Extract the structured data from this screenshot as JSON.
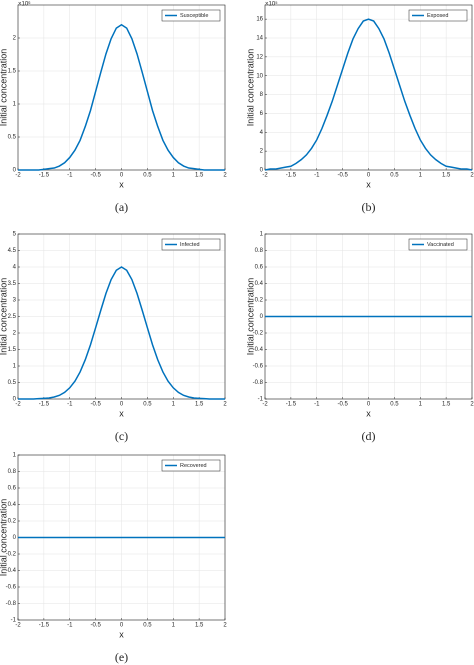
{
  "chart_data": [
    {
      "type": "line",
      "caption": "(a)",
      "xlabel": "x",
      "ylabel": "Initial concentration",
      "y_exponent_label": "×10⁶",
      "x": [
        -2,
        -1.9,
        -1.8,
        -1.7,
        -1.6,
        -1.5,
        -1.4,
        -1.3,
        -1.2,
        -1.1,
        -1,
        -0.9,
        -0.8,
        -0.7,
        -0.6,
        -0.5,
        -0.4,
        -0.3,
        -0.2,
        -0.1,
        0,
        0.1,
        0.2,
        0.3,
        0.4,
        0.5,
        0.6,
        0.7,
        0.8,
        0.9,
        1,
        1.1,
        1.2,
        1.3,
        1.4,
        1.5,
        1.6,
        1.7,
        1.8,
        1.9,
        2
      ],
      "series": [
        {
          "name": "Susceptible",
          "color": "#0072bd",
          "values": [
            0,
            0,
            0,
            0,
            0,
            0.01,
            0.02,
            0.03,
            0.06,
            0.11,
            0.19,
            0.3,
            0.45,
            0.66,
            0.9,
            1.19,
            1.48,
            1.76,
            1.99,
            2.15,
            2.2,
            2.15,
            1.99,
            1.76,
            1.48,
            1.19,
            0.9,
            0.66,
            0.45,
            0.3,
            0.19,
            0.11,
            0.06,
            0.03,
            0.02,
            0.01,
            0,
            0,
            0,
            0,
            0
          ]
        }
      ],
      "xlim": [
        -2,
        2
      ],
      "ylim": [
        0,
        2.5
      ],
      "xticks": [
        -2,
        -1.5,
        -1,
        -0.5,
        0,
        0.5,
        1,
        1.5,
        2
      ],
      "yticks": [
        0,
        0.5,
        1,
        1.5,
        2
      ],
      "grid": true,
      "legend": "upper right"
    },
    {
      "type": "line",
      "caption": "(b)",
      "xlabel": "x",
      "ylabel": "Initial concentration",
      "y_exponent_label": "×10⁵",
      "x": [
        -2,
        -1.9,
        -1.8,
        -1.7,
        -1.6,
        -1.5,
        -1.4,
        -1.3,
        -1.2,
        -1.1,
        -1,
        -0.9,
        -0.8,
        -0.7,
        -0.6,
        -0.5,
        -0.4,
        -0.3,
        -0.2,
        -0.1,
        0,
        0.1,
        0.2,
        0.3,
        0.4,
        0.5,
        0.6,
        0.7,
        0.8,
        0.9,
        1,
        1.1,
        1.2,
        1.3,
        1.4,
        1.5,
        1.6,
        1.7,
        1.8,
        1.9,
        2
      ],
      "series": [
        {
          "name": "Exposed",
          "color": "#0072bd",
          "values": [
            0,
            0.1,
            0.1,
            0.2,
            0.3,
            0.4,
            0.7,
            1.1,
            1.6,
            2.3,
            3.2,
            4.4,
            5.8,
            7.3,
            9,
            10.7,
            12.4,
            13.9,
            15,
            15.8,
            16,
            15.8,
            15,
            13.9,
            12.4,
            10.7,
            9,
            7.3,
            5.8,
            4.4,
            3.2,
            2.3,
            1.6,
            1.1,
            0.7,
            0.4,
            0.3,
            0.2,
            0.1,
            0.1,
            0
          ]
        }
      ],
      "xlim": [
        -2,
        2
      ],
      "ylim": [
        0,
        17.5
      ],
      "xticks": [
        -2,
        -1.5,
        -1,
        -0.5,
        0,
        0.5,
        1,
        1.5,
        2
      ],
      "yticks": [
        0,
        2,
        4,
        6,
        8,
        10,
        12,
        14,
        16
      ],
      "grid": true,
      "legend": "upper right"
    },
    {
      "type": "line",
      "caption": "(c)",
      "xlabel": "x",
      "ylabel": "Initial concentration",
      "x": [
        -2,
        -1.9,
        -1.8,
        -1.7,
        -1.6,
        -1.5,
        -1.4,
        -1.3,
        -1.2,
        -1.1,
        -1,
        -0.9,
        -0.8,
        -0.7,
        -0.6,
        -0.5,
        -0.4,
        -0.3,
        -0.2,
        -0.1,
        0,
        0.1,
        0.2,
        0.3,
        0.4,
        0.5,
        0.6,
        0.7,
        0.8,
        0.9,
        1,
        1.1,
        1.2,
        1.3,
        1.4,
        1.5,
        1.6,
        1.7,
        1.8,
        1.9,
        2
      ],
      "series": [
        {
          "name": "Infected",
          "color": "#0072bd",
          "values": [
            0,
            0,
            0,
            0,
            0.01,
            0.02,
            0.03,
            0.06,
            0.11,
            0.2,
            0.34,
            0.54,
            0.82,
            1.19,
            1.64,
            2.16,
            2.69,
            3.2,
            3.62,
            3.9,
            4,
            3.9,
            3.62,
            3.2,
            2.69,
            2.16,
            1.64,
            1.19,
            0.82,
            0.54,
            0.34,
            0.2,
            0.11,
            0.06,
            0.03,
            0.02,
            0.01,
            0,
            0,
            0,
            0
          ]
        }
      ],
      "xlim": [
        -2,
        2
      ],
      "ylim": [
        0,
        5
      ],
      "xticks": [
        -2,
        -1.5,
        -1,
        -0.5,
        0,
        0.5,
        1,
        1.5,
        2
      ],
      "yticks": [
        0,
        0.5,
        1,
        1.5,
        2,
        2.5,
        3,
        3.5,
        4,
        4.5,
        5
      ],
      "grid": true,
      "legend": "upper right"
    },
    {
      "type": "line",
      "caption": "(d)",
      "xlabel": "x",
      "ylabel": "Initial concentration",
      "x": [
        -2,
        2
      ],
      "series": [
        {
          "name": "Vaccinated",
          "color": "#0072bd",
          "values": [
            0,
            0
          ]
        }
      ],
      "xlim": [
        -2,
        2
      ],
      "ylim": [
        -1,
        1
      ],
      "xticks": [
        -2,
        -1.5,
        -1,
        -0.5,
        0,
        0.5,
        1,
        1.5,
        2
      ],
      "yticks": [
        -1,
        -0.8,
        -0.6,
        -0.4,
        -0.2,
        0,
        0.2,
        0.4,
        0.6,
        0.8,
        1
      ],
      "grid": true,
      "legend": "upper right"
    },
    {
      "type": "line",
      "caption": "(e)",
      "xlabel": "x",
      "ylabel": "Initial concentration",
      "x": [
        -2,
        2
      ],
      "series": [
        {
          "name": "Recovered",
          "color": "#0072bd",
          "values": [
            0,
            0
          ]
        }
      ],
      "xlim": [
        -2,
        2
      ],
      "ylim": [
        -1,
        1
      ],
      "xticks": [
        -2,
        -1.5,
        -1,
        -0.5,
        0,
        0.5,
        1,
        1.5,
        2
      ],
      "yticks": [
        -1,
        -0.8,
        -0.6,
        -0.4,
        -0.2,
        0,
        0.2,
        0.4,
        0.6,
        0.8,
        1
      ],
      "grid": true,
      "legend": "upper right"
    }
  ]
}
